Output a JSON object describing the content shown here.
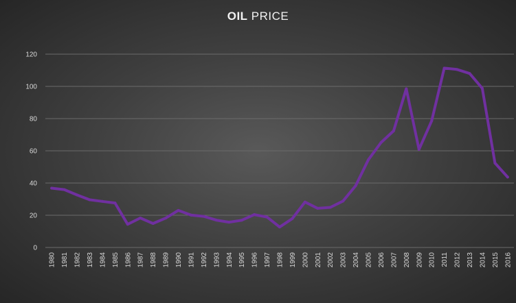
{
  "chart_data": {
    "type": "line",
    "title_bold": "OIL",
    "title_rest": " PRICE",
    "x": [
      "1980",
      "1981",
      "1982",
      "1983",
      "1984",
      "1985",
      "1986",
      "1987",
      "1988",
      "1989",
      "1990",
      "1991",
      "1992",
      "1993",
      "1994",
      "1995",
      "1996",
      "1997",
      "1998",
      "1999",
      "2000",
      "2001",
      "2002",
      "2003",
      "2004",
      "2005",
      "2006",
      "2007",
      "2008",
      "2009",
      "2010",
      "2011",
      "2012",
      "2013",
      "2014",
      "2015",
      "2016"
    ],
    "series": [
      {
        "values": [
          36.8,
          35.9,
          32.6,
          29.6,
          28.6,
          27.6,
          14.4,
          18.3,
          14.9,
          18.2,
          23.0,
          20.1,
          19.3,
          17.0,
          15.7,
          16.9,
          20.4,
          18.9,
          12.7,
          17.9,
          28.2,
          24.3,
          24.9,
          28.8,
          38.3,
          54.4,
          65.1,
          72.4,
          98.5,
          60.9,
          78.5,
          111.3,
          110.5,
          108.0,
          98.8,
          52.4,
          43.7
        ],
        "color": "#7030a0"
      }
    ],
    "ylim": [
      0,
      120
    ],
    "yticks": [
      0,
      20,
      40,
      60,
      80,
      100,
      120
    ],
    "grid": true,
    "gridcolor": "#6b6b6b"
  }
}
